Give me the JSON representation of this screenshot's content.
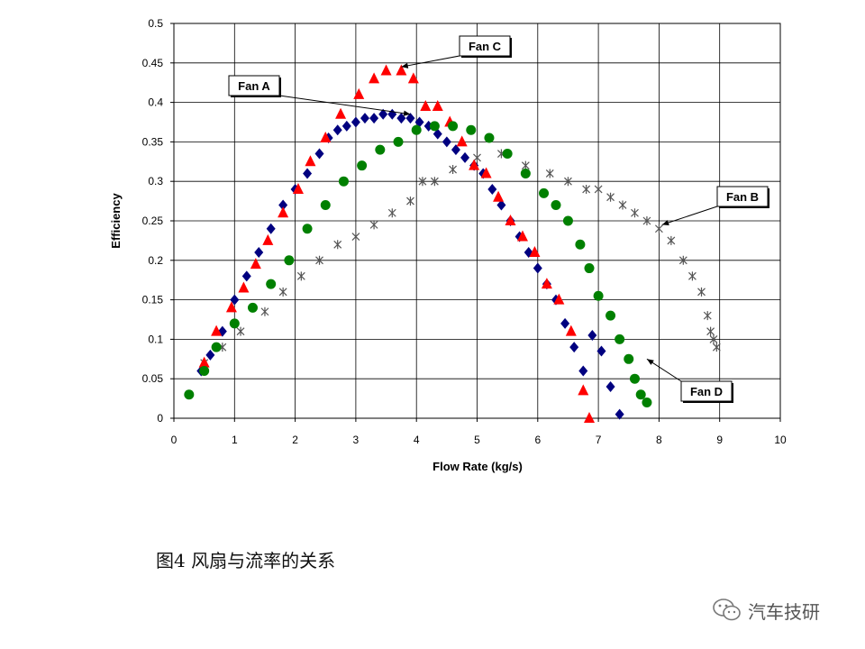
{
  "chart_data": {
    "type": "scatter",
    "xlabel": "Flow Rate (kg/s)",
    "ylabel": "Efficiency",
    "xlim": [
      0,
      10
    ],
    "ylim": [
      0,
      0.5
    ],
    "xticks": [
      "0",
      "1",
      "2",
      "3",
      "4",
      "5",
      "6",
      "7",
      "8",
      "9",
      "10"
    ],
    "yticks": [
      "0",
      "0.05",
      "0.1",
      "0.15",
      "0.2",
      "0.25",
      "0.3",
      "0.35",
      "0.4",
      "0.45",
      "0.5"
    ],
    "grid": true,
    "series": [
      {
        "name": "Fan A",
        "color": "#000080",
        "marker": "diamond",
        "x": [
          0.45,
          0.6,
          0.8,
          1.0,
          1.2,
          1.4,
          1.6,
          1.8,
          2.0,
          2.2,
          2.4,
          2.55,
          2.7,
          2.85,
          3.0,
          3.15,
          3.3,
          3.45,
          3.6,
          3.75,
          3.9,
          4.05,
          4.2,
          4.35,
          4.5,
          4.65,
          4.8,
          4.95,
          5.1,
          5.25,
          5.4,
          5.55,
          5.7,
          5.85,
          6.0,
          6.15,
          6.3,
          6.45,
          6.6,
          6.75,
          6.9,
          7.05,
          7.2,
          7.35
        ],
        "y": [
          0.06,
          0.08,
          0.11,
          0.15,
          0.18,
          0.21,
          0.24,
          0.27,
          0.29,
          0.31,
          0.335,
          0.355,
          0.365,
          0.37,
          0.375,
          0.38,
          0.38,
          0.385,
          0.385,
          0.38,
          0.38,
          0.375,
          0.37,
          0.36,
          0.35,
          0.34,
          0.33,
          0.32,
          0.31,
          0.29,
          0.27,
          0.25,
          0.23,
          0.21,
          0.19,
          0.17,
          0.15,
          0.12,
          0.09,
          0.06,
          0.105,
          0.085,
          0.04,
          0.005
        ]
      },
      {
        "name": "Fan B",
        "color": "#555555",
        "marker": "star",
        "x": [
          0.5,
          0.8,
          1.1,
          1.5,
          1.8,
          2.1,
          2.4,
          2.7,
          3.0,
          3.3,
          3.6,
          3.9,
          4.1,
          4.3,
          4.6,
          5.0,
          5.4,
          5.8,
          6.2,
          6.5,
          6.8,
          7.0,
          7.2,
          7.4,
          7.6,
          7.8,
          8.0,
          8.2,
          8.4,
          8.55,
          8.7,
          8.8,
          8.85,
          8.9,
          8.95
        ],
        "y": [
          0.07,
          0.09,
          0.11,
          0.135,
          0.16,
          0.18,
          0.2,
          0.22,
          0.23,
          0.245,
          0.26,
          0.275,
          0.3,
          0.3,
          0.315,
          0.33,
          0.335,
          0.32,
          0.31,
          0.3,
          0.29,
          0.29,
          0.28,
          0.27,
          0.26,
          0.25,
          0.24,
          0.225,
          0.2,
          0.18,
          0.16,
          0.13,
          0.11,
          0.1,
          0.09
        ]
      },
      {
        "name": "Fan C",
        "color": "#ff0000",
        "marker": "triangle",
        "x": [
          0.5,
          0.7,
          0.95,
          1.15,
          1.35,
          1.55,
          1.8,
          2.05,
          2.25,
          2.5,
          2.75,
          3.05,
          3.3,
          3.5,
          3.75,
          3.95,
          4.15,
          4.35,
          4.55,
          4.75,
          4.95,
          5.15,
          5.35,
          5.55,
          5.75,
          5.95,
          6.15,
          6.35,
          6.55,
          6.75,
          6.85
        ],
        "y": [
          0.07,
          0.11,
          0.14,
          0.165,
          0.195,
          0.225,
          0.26,
          0.29,
          0.325,
          0.355,
          0.385,
          0.41,
          0.43,
          0.44,
          0.44,
          0.43,
          0.395,
          0.395,
          0.375,
          0.35,
          0.32,
          0.31,
          0.28,
          0.25,
          0.23,
          0.21,
          0.17,
          0.15,
          0.11,
          0.035,
          0.0
        ]
      },
      {
        "name": "Fan D",
        "color": "#008000",
        "marker": "circle",
        "x": [
          0.25,
          0.5,
          0.7,
          1.0,
          1.3,
          1.6,
          1.9,
          2.2,
          2.5,
          2.8,
          3.1,
          3.4,
          3.7,
          4.0,
          4.3,
          4.6,
          4.9,
          5.2,
          5.5,
          5.8,
          6.1,
          6.3,
          6.5,
          6.7,
          6.85,
          7.0,
          7.2,
          7.35,
          7.5,
          7.6,
          7.7,
          7.8
        ],
        "y": [
          0.03,
          0.06,
          0.09,
          0.12,
          0.14,
          0.17,
          0.2,
          0.24,
          0.27,
          0.3,
          0.32,
          0.34,
          0.35,
          0.365,
          0.37,
          0.37,
          0.365,
          0.355,
          0.335,
          0.31,
          0.285,
          0.27,
          0.25,
          0.22,
          0.19,
          0.155,
          0.13,
          0.1,
          0.075,
          0.05,
          0.03,
          0.02
        ]
      }
    ],
    "callouts": [
      {
        "label": "Fan A",
        "arrow_x": 3.9,
        "arrow_y": 0.385
      },
      {
        "label": "Fan B",
        "arrow_x": 8.05,
        "arrow_y": 0.245
      },
      {
        "label": "Fan C",
        "arrow_x": 3.75,
        "arrow_y": 0.445
      },
      {
        "label": "Fan D",
        "arrow_x": 7.8,
        "arrow_y": 0.075
      }
    ]
  },
  "caption": "图4 风扇与流率的关系",
  "watermark": {
    "icon": "wechat-icon",
    "text": "汽车技研"
  }
}
